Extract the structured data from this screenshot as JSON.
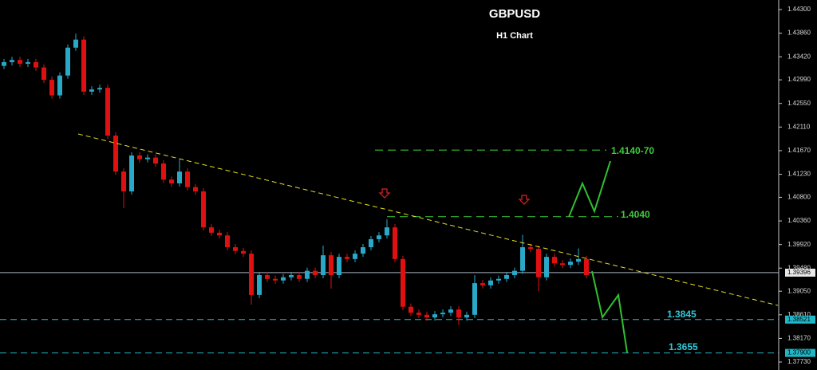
{
  "chart_data": {
    "type": "candlestick",
    "title": "GBPUSD",
    "subtitle": "H1 Chart",
    "up_color": "#2aa8c8",
    "down_color": "#e01010",
    "open": [
      1.4325,
      1.4332,
      1.4336,
      1.4329,
      1.4332,
      1.4322,
      1.4299,
      1.427,
      1.4307,
      1.4359,
      1.4374,
      1.4277,
      1.4281,
      1.4284,
      1.4195,
      1.4128,
      1.4091,
      1.4158,
      1.4151,
      1.4154,
      1.4143,
      1.4113,
      1.4106,
      1.4128,
      1.4099,
      1.4091,
      1.4024,
      1.4014,
      1.4009,
      1.3987,
      1.398,
      1.3975,
      1.3898,
      1.3935,
      1.3928,
      1.3925,
      1.3931,
      1.3935,
      1.3928,
      1.3943,
      1.3935,
      1.3972,
      1.3935,
      1.3969,
      1.3965,
      1.3975,
      1.3987,
      1.4002,
      1.4009,
      1.4024,
      1.3965,
      1.3876,
      1.3865,
      1.3861,
      1.3856,
      1.3862,
      1.3865,
      1.3871,
      1.3856,
      1.3861,
      1.392,
      1.3916,
      1.3925,
      1.3928,
      1.3935,
      1.3943,
      1.3987,
      1.3984,
      1.3931,
      1.3969,
      1.3957,
      1.3954,
      1.396,
      1.3965
    ],
    "high": [
      1.4338,
      1.4342,
      1.4342,
      1.4338,
      1.4338,
      1.4328,
      1.4305,
      1.4313,
      1.4365,
      1.4385,
      1.438,
      1.4287,
      1.429,
      1.429,
      1.4201,
      1.4134,
      1.4164,
      1.4164,
      1.416,
      1.416,
      1.4149,
      1.4119,
      1.415,
      1.4134,
      1.4105,
      1.4097,
      1.403,
      1.402,
      1.4015,
      1.3993,
      1.3986,
      1.3981,
      1.3941,
      1.3941,
      1.3934,
      1.3937,
      1.3941,
      1.3941,
      1.3949,
      1.3949,
      1.399,
      1.3978,
      1.3975,
      1.3975,
      1.3981,
      1.3993,
      1.4008,
      1.4015,
      1.4039,
      1.403,
      1.3971,
      1.3882,
      1.3871,
      1.3867,
      1.3868,
      1.3871,
      1.3877,
      1.3877,
      1.3867,
      1.3935,
      1.3926,
      1.3931,
      1.3934,
      1.3941,
      1.3949,
      1.401,
      1.3993,
      1.399,
      1.3975,
      1.3975,
      1.3963,
      1.3966,
      1.3985,
      1.3971
    ],
    "low": [
      1.4319,
      1.4326,
      1.4323,
      1.4323,
      1.4316,
      1.4293,
      1.4264,
      1.4264,
      1.4301,
      1.4353,
      1.4271,
      1.4271,
      1.4275,
      1.4189,
      1.4122,
      1.406,
      1.4085,
      1.4145,
      1.4145,
      1.4137,
      1.4107,
      1.41,
      1.41,
      1.4093,
      1.4085,
      1.4018,
      1.4008,
      1.4003,
      1.3981,
      1.3974,
      1.3969,
      1.388,
      1.3892,
      1.3922,
      1.3919,
      1.3919,
      1.3925,
      1.3922,
      1.3922,
      1.3929,
      1.3929,
      1.391,
      1.3929,
      1.3959,
      1.3959,
      1.3969,
      1.3981,
      1.3996,
      1.4003,
      1.3959,
      1.387,
      1.3859,
      1.3855,
      1.385,
      1.385,
      1.3856,
      1.3859,
      1.3842,
      1.385,
      1.3855,
      1.391,
      1.391,
      1.3919,
      1.3922,
      1.3929,
      1.3937,
      1.3978,
      1.3905,
      1.3925,
      1.3951,
      1.3948,
      1.3948,
      1.3954,
      1.3929
    ],
    "close": [
      1.4332,
      1.4336,
      1.4329,
      1.4332,
      1.4322,
      1.4299,
      1.427,
      1.4307,
      1.4359,
      1.4374,
      1.4277,
      1.4281,
      1.4284,
      1.4195,
      1.4128,
      1.4091,
      1.4158,
      1.4151,
      1.4154,
      1.4143,
      1.4113,
      1.4106,
      1.4128,
      1.4099,
      1.4091,
      1.4024,
      1.4014,
      1.4009,
      1.3987,
      1.398,
      1.3975,
      1.3898,
      1.3935,
      1.3928,
      1.3925,
      1.3931,
      1.3935,
      1.3928,
      1.3943,
      1.3935,
      1.3972,
      1.3935,
      1.3969,
      1.3965,
      1.3975,
      1.3987,
      1.4002,
      1.4009,
      1.4024,
      1.3965,
      1.3876,
      1.3865,
      1.3861,
      1.3856,
      1.3862,
      1.3865,
      1.3871,
      1.3856,
      1.3861,
      1.392,
      1.3916,
      1.3925,
      1.3928,
      1.3935,
      1.3943,
      1.3987,
      1.3984,
      1.3931,
      1.3969,
      1.3957,
      1.3954,
      1.396,
      1.3965,
      1.3935
    ],
    "ylim": [
      1.3773,
      1.44478
    ],
    "yticks": [
      {
        "value": 1.443,
        "label": "1.44300"
      },
      {
        "value": 1.4386,
        "label": "1.43860"
      },
      {
        "value": 1.4342,
        "label": "1.43420"
      },
      {
        "value": 1.4299,
        "label": "1.42990"
      },
      {
        "value": 1.4255,
        "label": "1.42550"
      },
      {
        "value": 1.4211,
        "label": "1.42110"
      },
      {
        "value": 1.4167,
        "label": "1.41670"
      },
      {
        "value": 1.4123,
        "label": "1.41230"
      },
      {
        "value": 1.408,
        "label": "1.40800"
      },
      {
        "value": 1.4036,
        "label": "1.40360"
      },
      {
        "value": 1.3992,
        "label": "1.39920"
      },
      {
        "value": 1.3948,
        "label": "1.39480"
      },
      {
        "value": 1.3905,
        "label": "1.39050"
      },
      {
        "value": 1.3861,
        "label": "1.38610"
      },
      {
        "value": 1.3817,
        "label": "1.38170"
      },
      {
        "value": 1.3773,
        "label": "1.37730"
      }
    ],
    "price_lines": [
      {
        "value": 1.39396,
        "color": "#a8b0c0",
        "style": "solid"
      },
      {
        "value": 1.38521,
        "color": "#20b8c8",
        "style": "dashed"
      },
      {
        "value": 1.379,
        "label": "1.37900",
        "color": "#20b8c8",
        "style": "dashed"
      }
    ],
    "target_levels": [
      1.4168,
      1.4044
    ],
    "annotations": [
      "1.4140-70",
      "1.4040",
      "1.3845",
      "1.3655"
    ]
  }
}
